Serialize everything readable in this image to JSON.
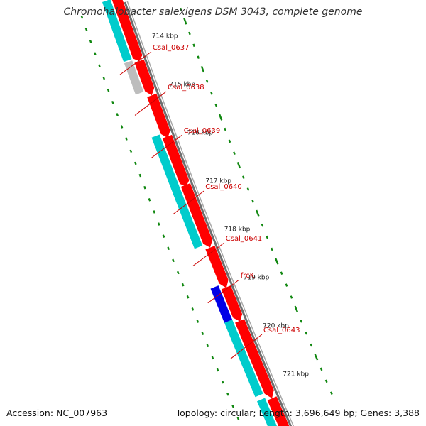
{
  "title": "Chromohalobacter salexigens DSM 3043, complete genome",
  "accession": "Accession: NC_007963",
  "summary": "Topology: circular; Length: 3,696,649 bp; Genes: 3,388",
  "colors": {
    "backbone": "#8c8c8c",
    "cds": "#ff0000",
    "rna": "#00cccc",
    "other": "#bdbdbd",
    "highlight": "#0000e6",
    "ticks": "#118811",
    "label": "#cc0000"
  },
  "scale_ticks": [
    "714 kbp",
    "715 kbp",
    "716 kbp",
    "717 kbp",
    "718 kbp",
    "719 kbp",
    "720 kbp",
    "721 kbp"
  ],
  "gene_labels": [
    "Csal_0637",
    "Csal_0638",
    "Csal_0639",
    "Csal_0640",
    "Csal_0641",
    "frcK",
    "Csal_0643"
  ]
}
